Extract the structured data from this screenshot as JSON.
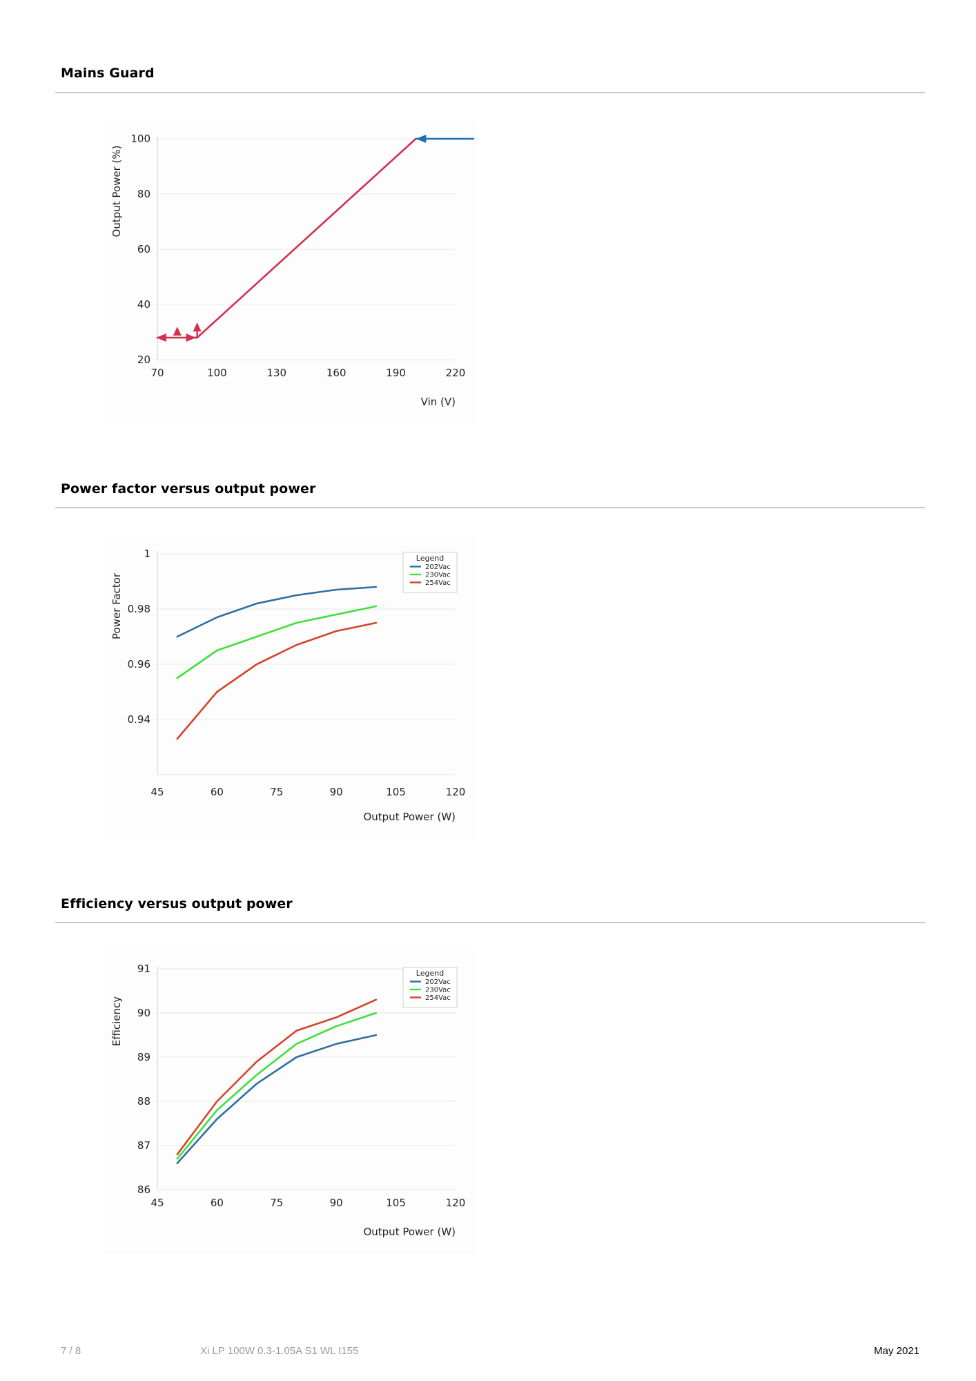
{
  "sections": [
    {
      "title": "Mains Guard"
    },
    {
      "title": "Power factor versus output power"
    },
    {
      "title": "Efficiency versus output power"
    }
  ],
  "footer": {
    "page": "7 / 8",
    "product": "Xi LP 100W 0.3-1.05A S1 WL I155",
    "date": "May 2021"
  },
  "colors": {
    "rule": "#6f93ab",
    "series_202": "#2e6fa0",
    "series_230": "#3fe03a",
    "series_254": "#d2452a",
    "mains_line": "#d2304e",
    "mains_arrow": "#1f6fb2"
  },
  "chart_data": [
    {
      "type": "line",
      "title": "",
      "xlabel": "Vin (V)",
      "ylabel": "Output Power (%)",
      "xlim": [
        70,
        220
      ],
      "ylim": [
        20,
        100
      ],
      "xticks": [
        70,
        100,
        130,
        160,
        190,
        220
      ],
      "yticks": [
        20,
        40,
        60,
        80,
        100
      ],
      "grid": true,
      "legend": null,
      "series": [
        {
          "color": "#d2304e",
          "x": [
            70,
            90,
            200
          ],
          "y": [
            28,
            28,
            100
          ]
        },
        {
          "color": "#1f6fb2",
          "x": [
            200,
            229
          ],
          "y": [
            100,
            100
          ]
        }
      ]
    },
    {
      "type": "line",
      "title": "",
      "xlabel": "Output Power (W)",
      "ylabel": "Power Factor",
      "xlim": [
        45,
        120
      ],
      "ylim": [
        0.92,
        1.0
      ],
      "xticks": [
        45,
        60,
        75,
        90,
        105,
        120
      ],
      "yticks": [
        0.94,
        0.96,
        0.98,
        1
      ],
      "ytick_labels": [
        "0.94",
        "0.96",
        "0.98",
        "1"
      ],
      "grid": true,
      "legend_title": "Legend",
      "legend_position": "top-right",
      "x": [
        50,
        60,
        70,
        80,
        90,
        100
      ],
      "series": [
        {
          "name": "202Vac",
          "color": "#2e6fa0",
          "values": [
            0.97,
            0.977,
            0.982,
            0.985,
            0.987,
            0.988
          ]
        },
        {
          "name": "230Vac",
          "color": "#3fe03a",
          "values": [
            0.955,
            0.965,
            0.97,
            0.975,
            0.978,
            0.981
          ]
        },
        {
          "name": "254Vac",
          "color": "#d2452a",
          "values": [
            0.933,
            0.95,
            0.96,
            0.967,
            0.972,
            0.975
          ]
        }
      ]
    },
    {
      "type": "line",
      "title": "",
      "xlabel": "Output Power (W)",
      "ylabel": "Efficiency",
      "xlim": [
        45,
        120
      ],
      "ylim": [
        86,
        91
      ],
      "xticks": [
        45,
        60,
        75,
        90,
        105,
        120
      ],
      "yticks": [
        86,
        87,
        88,
        89,
        90,
        91
      ],
      "grid": true,
      "legend_title": "Legend",
      "legend_position": "top-right",
      "x": [
        50,
        60,
        70,
        80,
        90,
        100
      ],
      "series": [
        {
          "name": "202Vac",
          "color": "#2e6fa0",
          "values": [
            86.6,
            87.6,
            88.4,
            89.0,
            89.3,
            89.5
          ]
        },
        {
          "name": "230Vac",
          "color": "#3fe03a",
          "values": [
            86.7,
            87.8,
            88.6,
            89.3,
            89.7,
            90.0
          ]
        },
        {
          "name": "254Vac",
          "color": "#d2452a",
          "values": [
            86.8,
            88.0,
            88.9,
            89.6,
            89.9,
            90.3
          ]
        }
      ]
    }
  ]
}
